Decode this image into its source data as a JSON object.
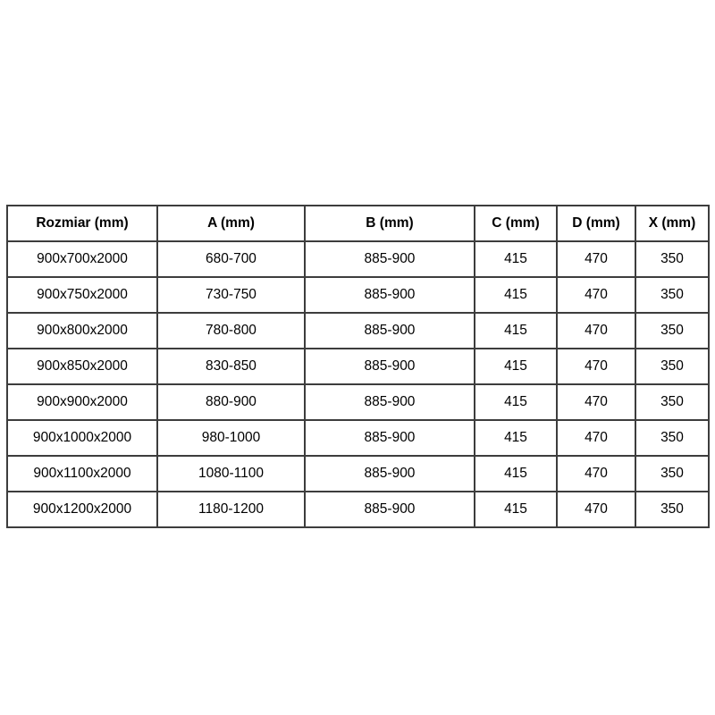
{
  "colors": {
    "background": "#ffffff",
    "border": "#3d3d3d",
    "text": "#000000"
  },
  "table": {
    "headers": [
      "Rozmiar (mm)",
      "A (mm)",
      "B (mm)",
      "C (mm)",
      "D (mm)",
      "X (mm)"
    ],
    "rows": [
      [
        "900x700x2000",
        "680-700",
        "885-900",
        "415",
        "470",
        "350"
      ],
      [
        "900x750x2000",
        "730-750",
        "885-900",
        "415",
        "470",
        "350"
      ],
      [
        "900x800x2000",
        "780-800",
        "885-900",
        "415",
        "470",
        "350"
      ],
      [
        "900x850x2000",
        "830-850",
        "885-900",
        "415",
        "470",
        "350"
      ],
      [
        "900x900x2000",
        "880-900",
        "885-900",
        "415",
        "470",
        "350"
      ],
      [
        "900x1000x2000",
        "980-1000",
        "885-900",
        "415",
        "470",
        "350"
      ],
      [
        "900x1100x2000",
        "1080-1100",
        "885-900",
        "415",
        "470",
        "350"
      ],
      [
        "900x1200x2000",
        "1180-1200",
        "885-900",
        "415",
        "470",
        "350"
      ]
    ]
  },
  "chart_data": {
    "type": "table",
    "title": "",
    "columns": [
      "Rozmiar (mm)",
      "A (mm)",
      "B (mm)",
      "C (mm)",
      "D (mm)",
      "X (mm)"
    ],
    "rows": [
      [
        "900x700x2000",
        "680-700",
        "885-900",
        "415",
        "470",
        "350"
      ],
      [
        "900x750x2000",
        "730-750",
        "885-900",
        "415",
        "470",
        "350"
      ],
      [
        "900x800x2000",
        "780-800",
        "885-900",
        "415",
        "470",
        "350"
      ],
      [
        "900x850x2000",
        "830-850",
        "885-900",
        "415",
        "470",
        "350"
      ],
      [
        "900x900x2000",
        "880-900",
        "885-900",
        "415",
        "470",
        "350"
      ],
      [
        "900x1000x2000",
        "980-1000",
        "885-900",
        "415",
        "470",
        "350"
      ],
      [
        "900x1100x2000",
        "1080-1100",
        "885-900",
        "415",
        "470",
        "350"
      ],
      [
        "900x1200x2000",
        "1180-1200",
        "885-900",
        "415",
        "470",
        "350"
      ]
    ]
  }
}
